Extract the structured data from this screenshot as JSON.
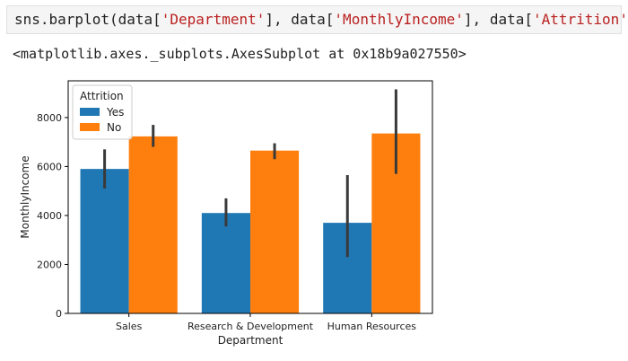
{
  "code_cell": {
    "prefix": "sns.barplot(data[",
    "arg1": "'Department'",
    "sep1": "], data[",
    "arg2": "'MonthlyIncome'",
    "sep2": "], data[",
    "arg3": "'Attrition'",
    "suffix": "])"
  },
  "output_text": "<matplotlib.axes._subplots.AxesSubplot at 0x18b9a027550>",
  "colors": {
    "yes": "#1f77b4",
    "no": "#ff7f0e",
    "error_bar": "#3a3a3a",
    "string": "#ba2121"
  },
  "chart_data": {
    "type": "bar",
    "categories": [
      "Sales",
      "Research & Development",
      "Human Resources"
    ],
    "xlabel": "Department",
    "ylabel": "MonthlyIncome",
    "ylim": [
      0,
      9500
    ],
    "yticks": [
      0,
      2000,
      4000,
      6000,
      8000
    ],
    "legend": {
      "title": "Attrition",
      "position": "top-left"
    },
    "series": [
      {
        "name": "Yes",
        "values": [
          5900,
          4100,
          3700
        ],
        "ci_low": [
          5100,
          3550,
          2300
        ],
        "ci_high": [
          6700,
          4700,
          5650
        ]
      },
      {
        "name": "No",
        "values": [
          7230,
          6650,
          7350
        ],
        "ci_low": [
          6800,
          6300,
          5700
        ],
        "ci_high": [
          7700,
          6950,
          9150
        ]
      }
    ]
  }
}
